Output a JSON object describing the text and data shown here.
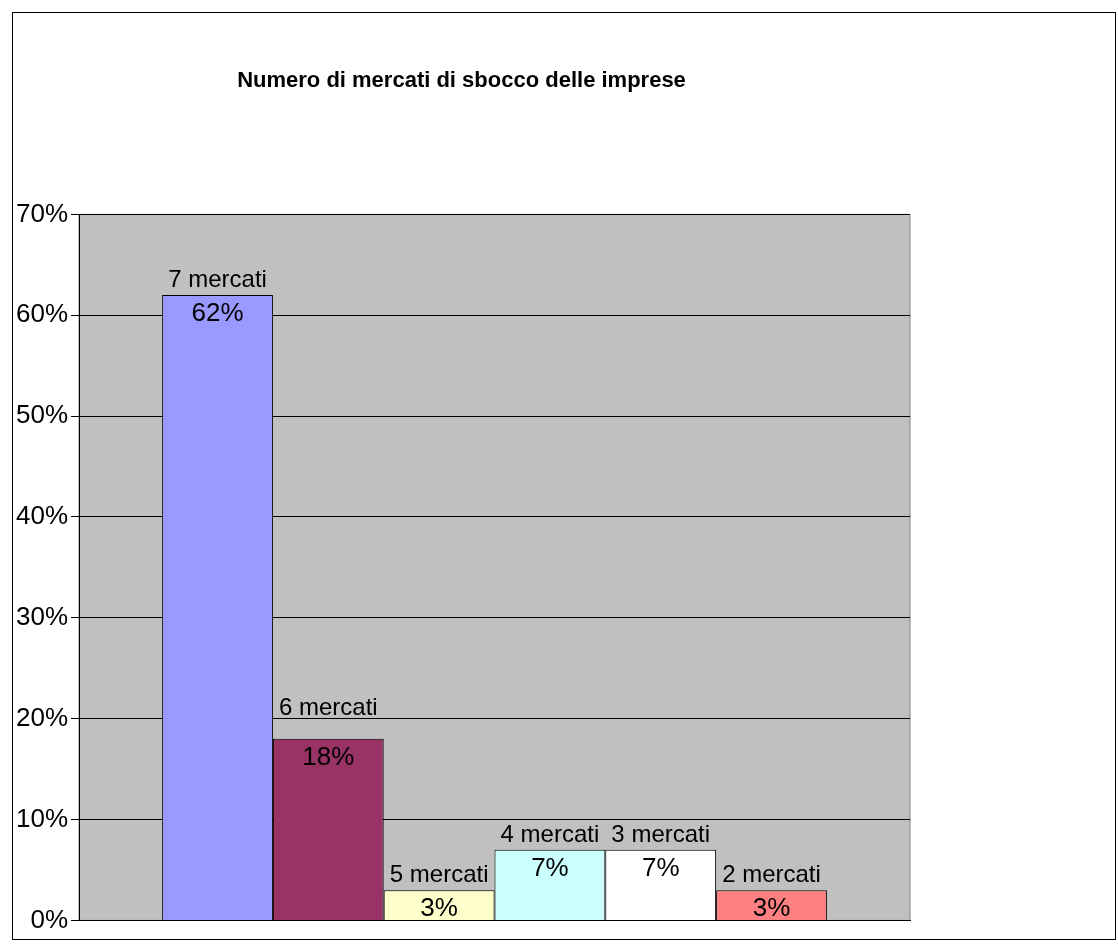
{
  "chart_data": {
    "type": "bar",
    "title": "Numero di mercati di sbocco delle imprese",
    "categories": [
      null
    ],
    "series": [
      {
        "name": "7 mercati",
        "color": "#9999ff",
        "values": [
          62
        ],
        "value_labels": [
          "62%"
        ]
      },
      {
        "name": "6 mercati",
        "color": "#993366",
        "values": [
          18
        ],
        "value_labels": [
          "18%"
        ]
      },
      {
        "name": "5 mercati",
        "color": "#ffffcc",
        "values": [
          3
        ],
        "value_labels": [
          "3%"
        ]
      },
      {
        "name": "4 mercati",
        "color": "#ccffff",
        "values": [
          7
        ],
        "value_labels": [
          "7%"
        ]
      },
      {
        "name": "3 mercati",
        "color": "#ffffff",
        "values": [
          7
        ],
        "value_labels": [
          "7%"
        ]
      },
      {
        "name": "2 mercati",
        "color": "#ff8080",
        "values": [
          3
        ],
        "value_labels": [
          "3%"
        ]
      }
    ],
    "ylim": [
      0,
      70
    ],
    "yticks": [
      {
        "value": 0,
        "label": "0%"
      },
      {
        "value": 10,
        "label": "10%"
      },
      {
        "value": 20,
        "label": "20%"
      },
      {
        "value": 30,
        "label": "30%"
      },
      {
        "value": 40,
        "label": "40%"
      },
      {
        "value": 50,
        "label": "50%"
      },
      {
        "value": 60,
        "label": "60%"
      },
      {
        "value": 70,
        "label": "70%"
      }
    ],
    "grid": "y",
    "legend": false,
    "tick_labels": "y"
  }
}
